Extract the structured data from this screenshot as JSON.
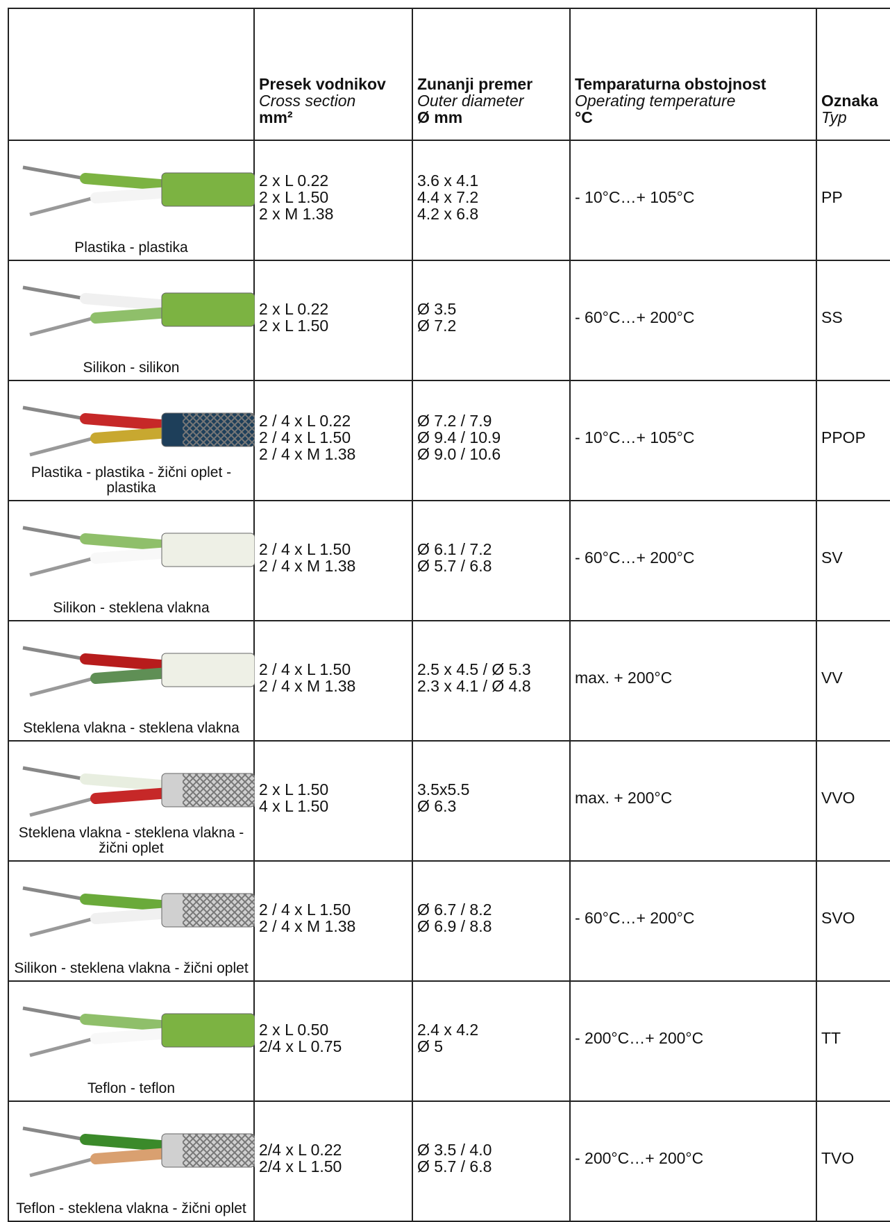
{
  "header": {
    "columns": [
      [
        "Presek vodnikov",
        "Cross section",
        "mm²"
      ],
      [
        "Zunanji premer",
        "Outer diameter",
        "Ø mm"
      ],
      [
        "Temparaturna obstojnost",
        "Operating temperature",
        "°C"
      ],
      [
        "Oznaka",
        "Typ"
      ]
    ]
  },
  "table": {
    "rows": [
      {
        "caption": "Plastika - plastika",
        "cross_section": [
          "2 x L 0.22",
          "2 x L 1.50",
          "2 x M 1.38"
        ],
        "diameter": [
          "3.6 x 4.1",
          "4.4 x 7.2",
          "4.2 x 6.8"
        ],
        "temperature": " - 10°C…+ 105°C",
        "type": "PP"
      },
      {
        "caption": "Silikon - silikon",
        "cross_section": [
          "2 x L 0.22",
          "2 x L 1.50"
        ],
        "diameter": [
          "Ø 3.5",
          "Ø 7.2"
        ],
        "temperature": "- 60°C…+ 200°C",
        "type": "SS"
      },
      {
        "caption": "Plastika - plastika - žični oplet - plastika",
        "cross_section": [
          "2 / 4 x L 0.22",
          "2 / 4 x L 1.50",
          "2 / 4 x M 1.38"
        ],
        "diameter": [
          "Ø 7.2 / 7.9",
          "Ø 9.4 / 10.9",
          "Ø 9.0 / 10.6"
        ],
        "temperature": "- 10°C…+ 105°C",
        "type": "PPOP"
      },
      {
        "caption": "Silikon - steklena vlakna",
        "cross_section": [
          "2 / 4 x L 1.50",
          "2 / 4 x M 1.38"
        ],
        "diameter": [
          "Ø 6.1 / 7.2",
          "Ø 5.7 / 6.8"
        ],
        "temperature": "- 60°C…+ 200°C",
        "type": "SV"
      },
      {
        "caption": "Steklena vlakna - steklena vlakna",
        "cross_section": [
          "2 / 4 x L 1.50",
          "2 / 4 x M 1.38"
        ],
        "diameter": [
          "2.5 x 4.5 / Ø 5.3",
          "2.3 x 4.1 / Ø 4.8"
        ],
        "temperature": "max. + 200°C",
        "type": "VV"
      },
      {
        "caption": "Steklena vlakna - steklena vlakna - žični oplet",
        "cross_section": [
          "2 x L 1.50",
          "4 x L 1.50"
        ],
        "diameter": [
          "3.5x5.5",
          "Ø 6.3"
        ],
        "temperature": "max. + 200°C",
        "type": "VVO"
      },
      {
        "caption": "Silikon - steklena vlakna - žični oplet",
        "cross_section": [
          "2 / 4 x L 1.50",
          "2 / 4 x M 1.38"
        ],
        "diameter": [
          "Ø 6.7 / 8.2",
          "Ø 6.9 / 8.8"
        ],
        "temperature": "- 60°C…+ 200°C",
        "type": "SVO"
      },
      {
        "caption": "Teflon - teflon",
        "cross_section": [
          "2 x L 0.50",
          "2/4 x L 0.75"
        ],
        "diameter": [
          "2.4 x 4.2",
          "Ø 5"
        ],
        "temperature": "- 200°C…+ 200°C",
        "type": "TT"
      },
      {
        "caption": "Teflon - steklena vlakna - žični oplet",
        "cross_section": [
          "2/4 x L 0.22",
          "2/4 x L 1.50"
        ],
        "diameter": [
          "Ø 3.5 / 4.0",
          "Ø 5.7 / 6.8"
        ],
        "temperature": "- 200°C…+ 200°C",
        "type": "TVO"
      }
    ]
  }
}
